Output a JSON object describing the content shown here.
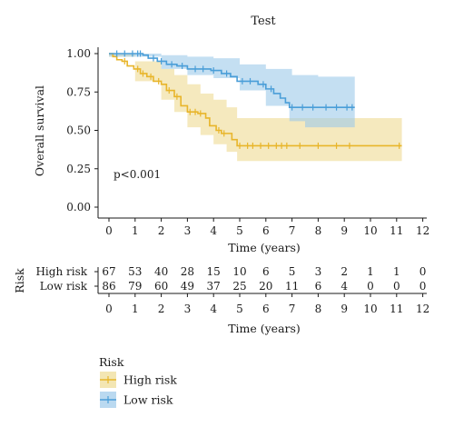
{
  "chart_data": {
    "type": "line",
    "subtype": "kaplan-meier-survival",
    "title": "Test",
    "xlabel": "Time (years)",
    "ylabel": "Overall survival",
    "xlim": [
      0,
      12
    ],
    "ylim": [
      0,
      1
    ],
    "x_ticks": [
      "0",
      "1",
      "2",
      "3",
      "4",
      "5",
      "6",
      "7",
      "8",
      "9",
      "10",
      "11",
      "12"
    ],
    "y_ticks": [
      "0.00",
      "0.25",
      "0.50",
      "0.75",
      "1.00"
    ],
    "annotation": "p<0.001",
    "grid": false,
    "series": [
      {
        "name": "High risk",
        "color": "#E8B52A",
        "band_color": "#EEDB93",
        "steps": [
          [
            0,
            1.0
          ],
          [
            0.15,
            0.98
          ],
          [
            0.3,
            0.96
          ],
          [
            0.5,
            0.95
          ],
          [
            0.7,
            0.92
          ],
          [
            0.95,
            0.9
          ],
          [
            1.2,
            0.87
          ],
          [
            1.45,
            0.85
          ],
          [
            1.7,
            0.82
          ],
          [
            2.0,
            0.8
          ],
          [
            2.2,
            0.76
          ],
          [
            2.5,
            0.72
          ],
          [
            2.75,
            0.66
          ],
          [
            3.0,
            0.62
          ],
          [
            3.4,
            0.61
          ],
          [
            3.7,
            0.58
          ],
          [
            3.85,
            0.53
          ],
          [
            4.1,
            0.5
          ],
          [
            4.3,
            0.48
          ],
          [
            4.7,
            0.44
          ],
          [
            4.9,
            0.4
          ],
          [
            11.2,
            0.4
          ]
        ],
        "band_upper": [
          [
            0,
            1.0
          ],
          [
            1,
            0.95
          ],
          [
            2,
            0.9
          ],
          [
            2.5,
            0.86
          ],
          [
            3,
            0.8
          ],
          [
            3.5,
            0.74
          ],
          [
            4,
            0.7
          ],
          [
            4.5,
            0.65
          ],
          [
            4.9,
            0.58
          ],
          [
            11.2,
            0.58
          ]
        ],
        "band_lower": [
          [
            0,
            0.98
          ],
          [
            1,
            0.82
          ],
          [
            2,
            0.7
          ],
          [
            2.5,
            0.62
          ],
          [
            3,
            0.52
          ],
          [
            3.5,
            0.47
          ],
          [
            4,
            0.41
          ],
          [
            4.5,
            0.36
          ],
          [
            4.9,
            0.3
          ],
          [
            11.2,
            0.27
          ]
        ],
        "censor_x": [
          0.6,
          1.1,
          1.3,
          1.6,
          1.9,
          2.3,
          2.6,
          3.1,
          3.3,
          3.5,
          4.2,
          4.4,
          5.0,
          5.3,
          5.5,
          5.8,
          6.1,
          6.4,
          6.6,
          6.8,
          7.3,
          8.0,
          8.7,
          9.2,
          11.1
        ]
      },
      {
        "name": "Low risk",
        "color": "#4A9ED8",
        "band_color": "#9DC9EA",
        "steps": [
          [
            0,
            1.0
          ],
          [
            1.3,
            0.99
          ],
          [
            1.5,
            0.97
          ],
          [
            1.85,
            0.95
          ],
          [
            2.2,
            0.93
          ],
          [
            2.6,
            0.92
          ],
          [
            3.0,
            0.9
          ],
          [
            3.9,
            0.89
          ],
          [
            4.3,
            0.87
          ],
          [
            4.65,
            0.85
          ],
          [
            4.9,
            0.82
          ],
          [
            5.7,
            0.8
          ],
          [
            6.0,
            0.77
          ],
          [
            6.3,
            0.74
          ],
          [
            6.55,
            0.71
          ],
          [
            6.75,
            0.68
          ],
          [
            6.9,
            0.65
          ],
          [
            9.4,
            0.65
          ]
        ],
        "band_upper": [
          [
            0,
            1.0
          ],
          [
            2,
            0.99
          ],
          [
            3,
            0.98
          ],
          [
            4,
            0.97
          ],
          [
            5,
            0.93
          ],
          [
            6,
            0.9
          ],
          [
            7,
            0.86
          ],
          [
            8,
            0.85
          ],
          [
            9.4,
            0.85
          ]
        ],
        "band_lower": [
          [
            0,
            0.98
          ],
          [
            2,
            0.9
          ],
          [
            3,
            0.86
          ],
          [
            4,
            0.84
          ],
          [
            5,
            0.76
          ],
          [
            6,
            0.66
          ],
          [
            6.9,
            0.56
          ],
          [
            7.5,
            0.52
          ],
          [
            9.4,
            0.52
          ]
        ],
        "censor_x": [
          0.3,
          0.6,
          0.9,
          1.1,
          1.2,
          1.7,
          2.0,
          2.4,
          2.8,
          3.3,
          3.6,
          4.0,
          4.5,
          5.1,
          5.4,
          5.9,
          6.2,
          7.0,
          7.4,
          7.8,
          8.3,
          8.7,
          9.1,
          9.3
        ]
      }
    ],
    "risk_table": {
      "ylabel": "Risk",
      "xlabel": "Time (years)",
      "x_ticks": [
        "0",
        "1",
        "2",
        "3",
        "4",
        "5",
        "6",
        "7",
        "8",
        "9",
        "10",
        "11",
        "12"
      ],
      "rows": [
        {
          "label": "High risk",
          "values": [
            "67",
            "53",
            "40",
            "28",
            "15",
            "10",
            "6",
            "5",
            "3",
            "2",
            "1",
            "1",
            "0"
          ]
        },
        {
          "label": "Low risk",
          "values": [
            "86",
            "79",
            "60",
            "49",
            "37",
            "25",
            "20",
            "11",
            "6",
            "4",
            "0",
            "0",
            "0"
          ]
        }
      ]
    },
    "legend": {
      "title": "Risk",
      "position": "bottom-left",
      "items": [
        {
          "label": "High risk",
          "color": "#E8B52A",
          "band_color": "#EEDB93"
        },
        {
          "label": "Low risk",
          "color": "#4A9ED8",
          "band_color": "#9DC9EA"
        }
      ]
    }
  }
}
